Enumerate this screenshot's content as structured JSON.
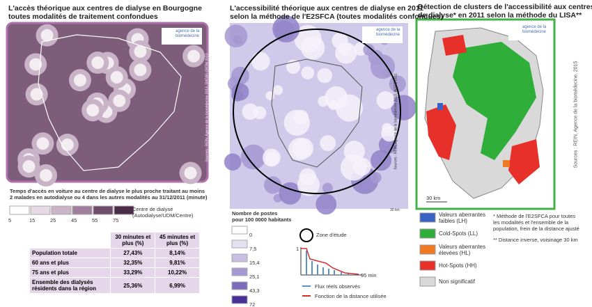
{
  "panel1": {
    "title": [
      "L'accès théorique aux centres de dialyse en Bourgogne",
      "toutes modalités de traitement confondues"
    ],
    "logo": [
      "agence de la",
      "biomédecine"
    ],
    "source": "Sources : REIN, Agence de la biomédecine 2013, DATAR-ORTM 2010",
    "legend_title": [
      "Temps d'accès en voiture au centre de dialyse le plus proche traitant au moins",
      "2 malades en autodialyse ou 4 dans les autres modalités au 31/12/2011 (minute)"
    ],
    "scale": [
      {
        "label": "5",
        "color": "#ffffff"
      },
      {
        "label": "15",
        "color": "#e6dbe4"
      },
      {
        "label": "25",
        "color": "#c9b3c6"
      },
      {
        "label": "45",
        "color": "#a07f9c"
      },
      {
        "label": "55",
        "color": "#6e4c6b"
      },
      {
        "label": "75",
        "color": "#4a2c49"
      }
    ],
    "centre": [
      "Centre de dialyse",
      "(Autodialyse/UDM/Centre)"
    ],
    "table": {
      "header": [
        "30 minutes et plus (%)",
        "45 minutes et plus (%)"
      ],
      "rows": [
        [
          "Population totale",
          "27,43%",
          "8,14%"
        ],
        [
          "60 ans et plus",
          "32,35%",
          "9,81%"
        ],
        [
          "75 ans et plus",
          "33,29%",
          "10,22%"
        ],
        [
          "Ensemble des dialysés résidents dans la région",
          "25,36%",
          "6,99%"
        ]
      ]
    }
  },
  "panel2": {
    "title": [
      "L'accessibilité théorique aux centres de dialyse en 2011",
      "selon la méthode de l'E2SFCA (toutes modalités confondues)"
    ],
    "logo": [
      "agence de la",
      "biomédecine"
    ],
    "source": "Sources : REIN, Agence de la biomédecine 2013, INSEE 2011",
    "scale_bar": "30 km",
    "legend_title": [
      "Nombre de postes",
      "pour 100 0000 habitants"
    ],
    "scale": [
      {
        "label": "0",
        "color": "#ffffff"
      },
      {
        "label": "7,5",
        "color": "#e4e0f0"
      },
      {
        "label": "15,4",
        "color": "#c6bfe2"
      },
      {
        "label": "25,1",
        "color": "#a499d1"
      },
      {
        "label": "43,3",
        "color": "#7b6cbb"
      },
      {
        "label": "72",
        "color": "#4a2f97"
      }
    ],
    "zone": "Zone d'étude",
    "chart_y": "1",
    "chart_x": "95 min",
    "flux": "Flux réels observés",
    "fonction": "Fonction de la distance utilisée"
  },
  "panel3": {
    "title": [
      "Détection de clusters de l'accessibilité aux centres",
      "de dialyse* en 2011 selon la méthode du LISA**"
    ],
    "logo": [
      "agence de la",
      "biomédecine"
    ],
    "source": "Sources : REIN, Agence de la biomédecine, 2015",
    "scale_bar": "30 km",
    "legend": [
      {
        "label": [
          "Valeurs aberrantes",
          "faibles (LH)"
        ],
        "color": "#3a62c4"
      },
      {
        "label": [
          "Cold-Spots (LL)"
        ],
        "color": "#2fae3a"
      },
      {
        "label": [
          "Valeurs aberrantes",
          "élevées (HL)"
        ],
        "color": "#f07a22"
      },
      {
        "label": [
          "Hot-Spots (HH)"
        ],
        "color": "#e8302a"
      },
      {
        "label": [
          "Non significatif"
        ],
        "color": "#d9d9d9"
      }
    ],
    "note1": [
      "* Méthode de l'E2SFCA pour toutes",
      "les modalités et l'ensemble de la",
      "population, frein de la distance ajusté"
    ],
    "note2": "** Distance inverse, voisinage 30 km"
  }
}
